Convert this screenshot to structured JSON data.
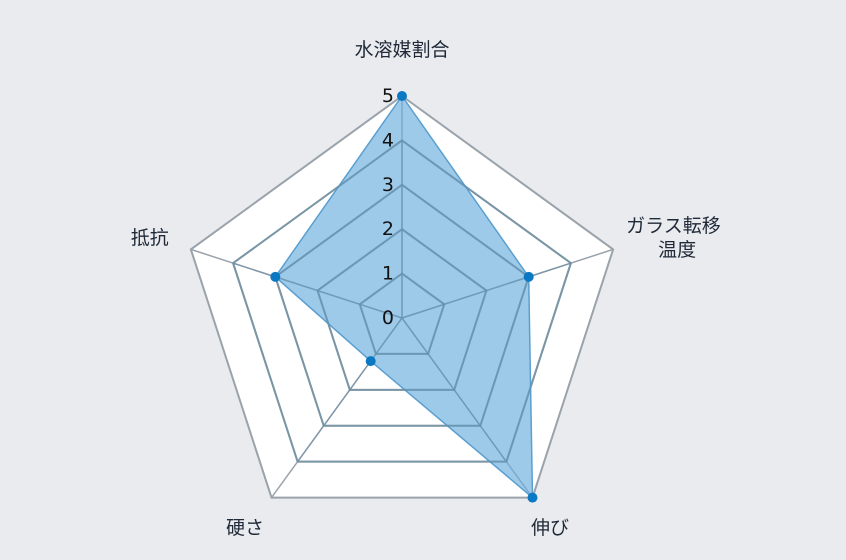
{
  "chart_data": {
    "type": "radar",
    "title": "",
    "axes": [
      {
        "label": [
          "水溶媒割合"
        ]
      },
      {
        "label": [
          "ガラス転移",
          "温度"
        ]
      },
      {
        "label": [
          "伸び"
        ]
      },
      {
        "label": [
          "硬さ"
        ]
      },
      {
        "label": [
          "抵抗"
        ]
      }
    ],
    "range": [
      0,
      5
    ],
    "ticks": [
      "0",
      "1",
      "2",
      "3",
      "4",
      "5"
    ],
    "series": [
      {
        "values": [
          5,
          3,
          5,
          1.2,
          3
        ]
      }
    ],
    "colors": {
      "fill": "#6aaedd",
      "stroke": "#5a9fd0",
      "point": "#0a78c2",
      "grid_outer": "#9aa3ab",
      "grid_inner": "#5f8aa3",
      "background": "#e9ebef"
    }
  }
}
